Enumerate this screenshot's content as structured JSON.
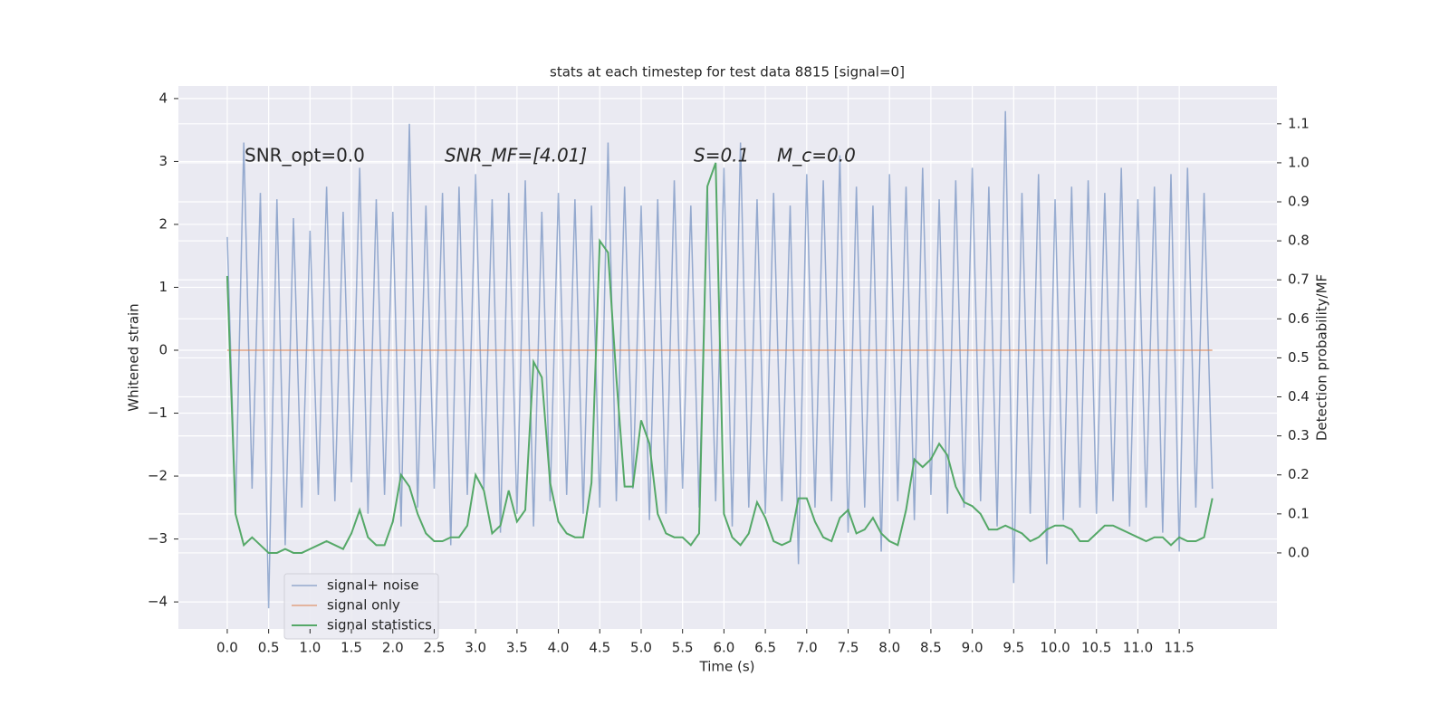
{
  "chart_data": {
    "type": "line",
    "title": "stats at each timestep for test data 8815 [signal=0]",
    "x_label": "Time (s)",
    "y_label": "Whitened strain",
    "y2_label": "Detection probability/MF",
    "annotations": [
      "SNR_opt=0.0",
      "SNR_MF=[4.01]",
      "S=0.1",
      "M_c=0.0"
    ],
    "grid": true,
    "legend_position": "lower left",
    "xlim": [
      -0.59,
      12.68
    ],
    "ylim": [
      -4.43,
      4.2
    ],
    "y2lim": [
      -0.195,
      1.197
    ],
    "xticks": [
      {
        "value": 0,
        "label": "0.0"
      },
      {
        "value": 0.5,
        "label": "0.5"
      },
      {
        "value": 1,
        "label": "1.0"
      },
      {
        "value": 1.5,
        "label": "1.5"
      },
      {
        "value": 2,
        "label": "2.0"
      },
      {
        "value": 2.5,
        "label": "2.5"
      },
      {
        "value": 3,
        "label": "3.0"
      },
      {
        "value": 3.5,
        "label": "3.5"
      },
      {
        "value": 4,
        "label": "4.0"
      },
      {
        "value": 4.5,
        "label": "4.5"
      },
      {
        "value": 5,
        "label": "5.0"
      },
      {
        "value": 5.5,
        "label": "5.5"
      },
      {
        "value": 6,
        "label": "6.0"
      },
      {
        "value": 6.5,
        "label": "6.5"
      },
      {
        "value": 7,
        "label": "7.0"
      },
      {
        "value": 7.5,
        "label": "7.5"
      },
      {
        "value": 8,
        "label": "8.0"
      },
      {
        "value": 8.5,
        "label": "8.5"
      },
      {
        "value": 9,
        "label": "9.0"
      },
      {
        "value": 9.5,
        "label": "9.5"
      },
      {
        "value": 10,
        "label": "10.0"
      },
      {
        "value": 10.5,
        "label": "10.5"
      },
      {
        "value": 11,
        "label": "11.0"
      },
      {
        "value": 11.5,
        "label": "11.5"
      }
    ],
    "yticks": [
      {
        "value": -4,
        "label": "−4"
      },
      {
        "value": -3,
        "label": "−3"
      },
      {
        "value": -2,
        "label": "−2"
      },
      {
        "value": -1,
        "label": "−1"
      },
      0,
      1,
      2,
      3,
      4
    ],
    "y2ticks": [
      {
        "value": 0,
        "label": "0.0"
      },
      0.1,
      0.2,
      0.3,
      0.4,
      0.5,
      0.6,
      0.7,
      0.8,
      0.9,
      {
        "value": 1,
        "label": "1.0"
      },
      1.1
    ],
    "x": [
      0,
      0.1,
      0.2,
      0.3,
      0.4,
      0.5,
      0.6,
      0.7,
      0.8,
      0.9,
      1,
      1.1,
      1.2,
      1.3,
      1.4,
      1.5,
      1.6,
      1.7,
      1.8,
      1.9,
      2,
      2.1,
      2.2,
      2.3,
      2.4,
      2.5,
      2.6,
      2.7,
      2.8,
      2.9,
      3,
      3.1,
      3.2,
      3.3,
      3.4,
      3.5,
      3.6,
      3.7,
      3.8,
      3.9,
      4,
      4.1,
      4.2,
      4.3,
      4.4,
      4.5,
      4.6,
      4.7,
      4.8,
      4.9,
      5,
      5.1,
      5.2,
      5.3,
      5.4,
      5.5,
      5.6,
      5.7,
      5.8,
      5.9,
      6,
      6.1,
      6.2,
      6.3,
      6.4,
      6.5,
      6.6,
      6.7,
      6.8,
      6.9,
      7,
      7.1,
      7.2,
      7.3,
      7.4,
      7.5,
      7.6,
      7.7,
      7.8,
      7.9,
      8,
      8.1,
      8.2,
      8.3,
      8.4,
      8.5,
      8.6,
      8.7,
      8.8,
      8.9,
      9,
      9.1,
      9.2,
      9.3,
      9.4,
      9.5,
      9.6,
      9.7,
      9.8,
      9.9,
      10,
      10.1,
      10.2,
      10.3,
      10.4,
      10.5,
      10.6,
      10.7,
      10.8,
      10.9,
      11,
      11.1,
      11.2,
      11.3,
      11.4,
      11.5,
      11.6,
      11.7,
      11.8,
      11.9
    ],
    "series": [
      {
        "name": "signal+ noise",
        "color": "#4c72b0",
        "values": [
          1.8,
          -2.6,
          3.3,
          -2.2,
          2.5,
          -4.1,
          2.4,
          -3.1,
          2.1,
          -2.5,
          1.9,
          -2.3,
          2.6,
          -2.4,
          2.2,
          -2.1,
          2.9,
          -2.6,
          2.4,
          -2.3,
          2.2,
          -2.8,
          3.6,
          -2.5,
          2.3,
          -2.2,
          2.5,
          -3.1,
          2.6,
          -2.3,
          2.8,
          -2.2,
          2.4,
          -2.9,
          2.5,
          -2.6,
          2.7,
          -2.8,
          2.2,
          -2.4,
          2.5,
          -2.3,
          2.4,
          -2.6,
          2.3,
          -2.5,
          3.3,
          -2.4,
          2.6,
          -2.2,
          2.3,
          -2.7,
          2.4,
          -2.6,
          2.7,
          -2.2,
          2.3,
          -2.5,
          2.6,
          -2.4,
          2.9,
          -2.8,
          3.3,
          -2.5,
          2.4,
          -2.6,
          2.5,
          -2.4,
          2.3,
          -3.4,
          2.8,
          -2.5,
          2.7,
          -2.4,
          3.1,
          -2.9,
          2.6,
          -2.5,
          2.3,
          -3.2,
          2.8,
          -2.4,
          2.6,
          -2.7,
          2.9,
          -2.3,
          2.4,
          -2.6,
          2.7,
          -2.5,
          2.9,
          -2.4,
          2.6,
          -2.8,
          3.8,
          -3.7,
          2.5,
          -2.6,
          2.8,
          -3.4,
          2.4,
          -2.7,
          2.6,
          -2.5,
          2.7,
          -2.6,
          2.5,
          -2.4,
          2.9,
          -2.8,
          2.4,
          -2.5,
          2.6,
          -2.9,
          2.8,
          -3.2,
          2.9,
          -2.5,
          2.5,
          -2.2
        ]
      },
      {
        "name": "signal only",
        "color": "#dd8452",
        "values": [
          0,
          0,
          0,
          0,
          0,
          0,
          0,
          0,
          0,
          0,
          0,
          0,
          0,
          0,
          0,
          0,
          0,
          0,
          0,
          0,
          0,
          0,
          0,
          0,
          0,
          0,
          0,
          0,
          0,
          0,
          0,
          0,
          0,
          0,
          0,
          0,
          0,
          0,
          0,
          0,
          0,
          0,
          0,
          0,
          0,
          0,
          0,
          0,
          0,
          0,
          0,
          0,
          0,
          0,
          0,
          0,
          0,
          0,
          0,
          0,
          0,
          0,
          0,
          0,
          0,
          0,
          0,
          0,
          0,
          0,
          0,
          0,
          0,
          0,
          0,
          0,
          0,
          0,
          0,
          0,
          0,
          0,
          0,
          0,
          0,
          0,
          0,
          0,
          0,
          0,
          0,
          0,
          0,
          0,
          0,
          0,
          0,
          0,
          0,
          0,
          0,
          0,
          0,
          0,
          0,
          0,
          0,
          0,
          0,
          0,
          0,
          0,
          0,
          0,
          0,
          0,
          0,
          0,
          0,
          0
        ]
      },
      {
        "name": "signal statistics",
        "color": "#55a868",
        "axis": "y2",
        "values": [
          0.71,
          0.1,
          0.02,
          0.04,
          0.02,
          0,
          0,
          0.01,
          0,
          0,
          0.01,
          0.02,
          0.03,
          0.02,
          0.01,
          0.05,
          0.11,
          0.04,
          0.02,
          0.02,
          0.08,
          0.2,
          0.17,
          0.1,
          0.05,
          0.03,
          0.03,
          0.04,
          0.04,
          0.07,
          0.2,
          0.16,
          0.05,
          0.07,
          0.16,
          0.08,
          0.11,
          0.49,
          0.45,
          0.18,
          0.08,
          0.05,
          0.04,
          0.04,
          0.18,
          0.8,
          0.77,
          0.45,
          0.17,
          0.17,
          0.34,
          0.28,
          0.1,
          0.05,
          0.04,
          0.04,
          0.02,
          0.05,
          0.94,
          1,
          0.1,
          0.04,
          0.02,
          0.05,
          0.13,
          0.09,
          0.03,
          0.02,
          0.03,
          0.14,
          0.14,
          0.08,
          0.04,
          0.03,
          0.09,
          0.11,
          0.05,
          0.06,
          0.09,
          0.05,
          0.03,
          0.02,
          0.11,
          0.24,
          0.22,
          0.24,
          0.28,
          0.25,
          0.17,
          0.13,
          0.12,
          0.1,
          0.06,
          0.06,
          0.07,
          0.06,
          0.05,
          0.03,
          0.04,
          0.06,
          0.07,
          0.07,
          0.06,
          0.03,
          0.03,
          0.05,
          0.07,
          0.07,
          0.06,
          0.05,
          0.04,
          0.03,
          0.04,
          0.04,
          0.02,
          0.04,
          0.03,
          0.03,
          0.04,
          0.14
        ]
      }
    ]
  }
}
